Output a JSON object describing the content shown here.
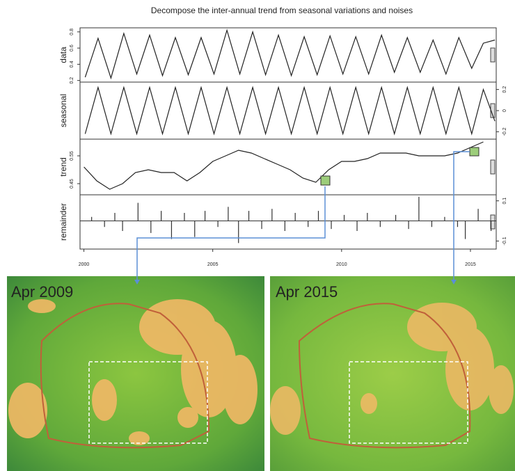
{
  "chart_data": [
    {
      "type": "line",
      "title": "Decompose the inter-annual trend from seasonal variations and noises",
      "y_label": "data",
      "axis_side": "left",
      "color": "#222222",
      "xlim": [
        1999.85,
        2016
      ],
      "ylim": [
        0.18,
        0.85
      ],
      "yticks": [
        0.2,
        0.4,
        0.6,
        0.8
      ],
      "x": [
        2000.05,
        2000.55,
        2001.05,
        2001.55,
        2002.05,
        2002.55,
        2003.05,
        2003.55,
        2004.05,
        2004.55,
        2005.05,
        2005.55,
        2006.05,
        2006.55,
        2007.05,
        2007.55,
        2008.05,
        2008.55,
        2009.05,
        2009.55,
        2010.05,
        2010.55,
        2011.05,
        2011.55,
        2012.05,
        2012.55,
        2013.05,
        2013.55,
        2014.05,
        2014.55,
        2015.05,
        2015.5,
        2015.95
      ],
      "values": [
        0.24,
        0.72,
        0.23,
        0.78,
        0.28,
        0.76,
        0.26,
        0.73,
        0.27,
        0.73,
        0.28,
        0.82,
        0.28,
        0.8,
        0.27,
        0.76,
        0.26,
        0.74,
        0.27,
        0.75,
        0.28,
        0.74,
        0.28,
        0.76,
        0.3,
        0.73,
        0.3,
        0.7,
        0.28,
        0.73,
        0.35,
        0.66,
        0.7
      ]
    },
    {
      "type": "line",
      "y_label": "seasonal",
      "axis_side": "right",
      "color": "#222222",
      "xlim": [
        1999.85,
        2016
      ],
      "ylim": [
        -0.27,
        0.27
      ],
      "yticks": [
        -0.2,
        0.0,
        0.2
      ],
      "x": [
        2000.05,
        2000.55,
        2001.05,
        2001.55,
        2002.05,
        2002.55,
        2003.05,
        2003.55,
        2004.05,
        2004.55,
        2005.05,
        2005.55,
        2006.05,
        2006.55,
        2007.05,
        2007.55,
        2008.05,
        2008.55,
        2009.05,
        2009.55,
        2010.05,
        2010.55,
        2011.05,
        2011.55,
        2012.05,
        2012.55,
        2013.05,
        2013.55,
        2014.05,
        2014.55,
        2015.05,
        2015.5,
        2015.95
      ],
      "values": [
        -0.22,
        0.22,
        -0.22,
        0.22,
        -0.22,
        0.22,
        -0.22,
        0.22,
        -0.22,
        0.22,
        -0.22,
        0.22,
        -0.22,
        0.22,
        -0.22,
        0.22,
        -0.22,
        0.22,
        -0.22,
        0.22,
        -0.22,
        0.22,
        -0.22,
        0.22,
        -0.22,
        0.22,
        -0.22,
        0.22,
        -0.22,
        0.22,
        -0.22,
        0.2,
        -0.1
      ]
    },
    {
      "type": "line",
      "y_label": "trend",
      "axis_side": "left",
      "color": "#222222",
      "xlim": [
        1999.85,
        2016
      ],
      "ylim": [
        0.41,
        0.61
      ],
      "yticks": [
        0.45,
        0.55
      ],
      "x": [
        2000.0,
        2000.5,
        2001.0,
        2001.5,
        2002.0,
        2002.5,
        2003.0,
        2003.5,
        2004.0,
        2004.5,
        2005.0,
        2005.5,
        2006.0,
        2006.5,
        2007.0,
        2007.5,
        2008.0,
        2008.5,
        2009.0,
        2009.5,
        2010.0,
        2010.5,
        2011.0,
        2011.5,
        2012.0,
        2012.5,
        2013.0,
        2013.5,
        2014.0,
        2014.5,
        2015.0,
        2015.5
      ],
      "values": [
        0.51,
        0.46,
        0.43,
        0.45,
        0.49,
        0.5,
        0.49,
        0.49,
        0.46,
        0.49,
        0.53,
        0.55,
        0.57,
        0.56,
        0.54,
        0.52,
        0.5,
        0.47,
        0.455,
        0.5,
        0.53,
        0.53,
        0.54,
        0.56,
        0.56,
        0.56,
        0.55,
        0.55,
        0.55,
        0.56,
        0.58,
        0.6
      ]
    },
    {
      "type": "bar",
      "y_label": "remainder",
      "axis_side": "right",
      "color": "#333333",
      "xlim": [
        1999.85,
        2016
      ],
      "ylim": [
        -0.14,
        0.13
      ],
      "yticks": [
        -0.1,
        0.1
      ],
      "xticks": [
        2000,
        2005,
        2010,
        2015
      ],
      "x": [
        2000.3,
        2000.8,
        2001.2,
        2001.5,
        2002.1,
        2002.6,
        2003.0,
        2003.4,
        2003.9,
        2004.3,
        2004.7,
        2005.2,
        2005.6,
        2006.0,
        2006.4,
        2006.9,
        2007.3,
        2007.8,
        2008.2,
        2008.7,
        2009.1,
        2009.6,
        2010.1,
        2010.6,
        2011.0,
        2011.5,
        2012.1,
        2012.6,
        2013.0,
        2013.5,
        2014.0,
        2014.5,
        2014.8,
        2015.3,
        2015.8
      ],
      "values": [
        0.02,
        -0.03,
        0.04,
        -0.05,
        0.09,
        -0.06,
        0.05,
        -0.09,
        0.04,
        -0.08,
        0.05,
        -0.03,
        0.07,
        -0.11,
        0.05,
        -0.04,
        0.06,
        -0.05,
        0.04,
        -0.03,
        0.05,
        -0.04,
        0.03,
        -0.05,
        0.04,
        -0.03,
        0.03,
        -0.04,
        0.12,
        -0.03,
        0.02,
        -0.03,
        -0.09,
        0.06,
        -0.05
      ]
    }
  ],
  "images": [
    {
      "label": "Apr 2009"
    },
    {
      "label": "Apr 2015"
    }
  ]
}
